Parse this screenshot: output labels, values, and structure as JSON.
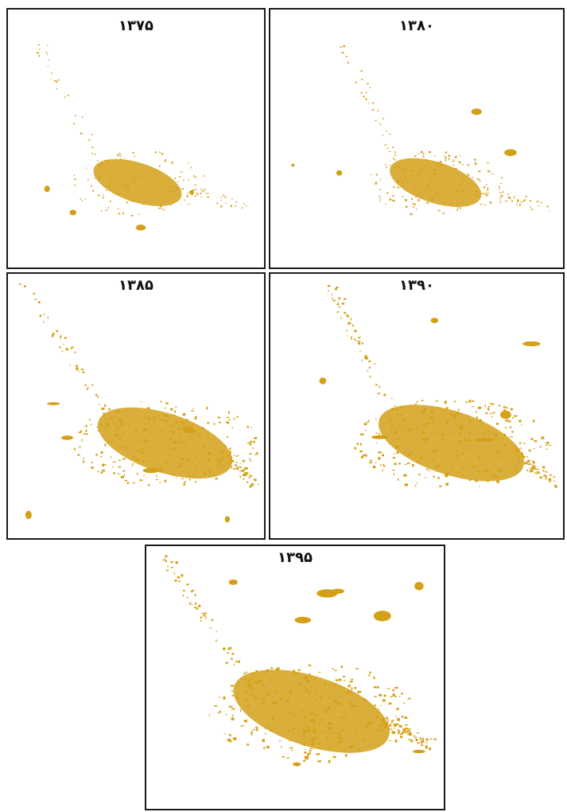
{
  "panels": [
    {
      "id": "p1",
      "year_label": "۱۳۷۵",
      "growth": 0.45
    },
    {
      "id": "p2",
      "year_label": "۱۳۸۰",
      "growth": 0.55
    },
    {
      "id": "p3",
      "year_label": "۱۳۸۵",
      "growth": 0.8
    },
    {
      "id": "p4",
      "year_label": "۱۳۹۰",
      "growth": 0.88
    },
    {
      "id": "p5",
      "year_label": "۱۳۹۵",
      "growth": 0.95
    }
  ],
  "colors": {
    "urban": "#d4a017",
    "border": "#1a1a1a"
  }
}
